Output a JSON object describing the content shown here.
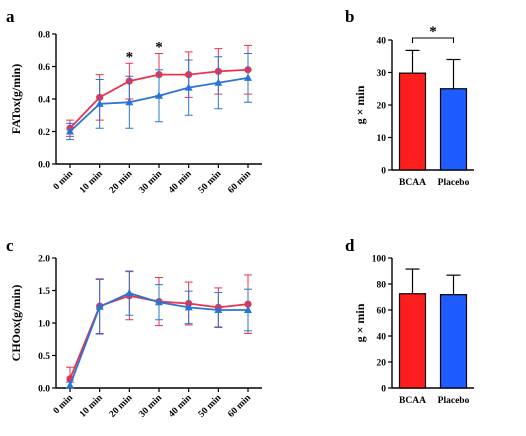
{
  "chart_data": [
    {
      "panel": "a",
      "type": "line",
      "xlabel": "",
      "ylabel": "FATox(g/min)",
      "categories": [
        "0 min",
        "10 min",
        "20 min",
        "30 min",
        "40 min",
        "50 min",
        "60 min"
      ],
      "ylim": [
        0.0,
        0.8
      ],
      "yticks": [
        "0.0",
        "0.2",
        "0.4",
        "0.6",
        "0.8"
      ],
      "series": [
        {
          "values": [
            0.22,
            0.41,
            0.51,
            0.55,
            0.55,
            0.57,
            0.58
          ],
          "error": [
            0.05,
            0.14,
            0.11,
            0.13,
            0.14,
            0.14,
            0.15
          ],
          "color": "#e8334f",
          "marker": "circle"
        },
        {
          "values": [
            0.2,
            0.37,
            0.38,
            0.42,
            0.47,
            0.5,
            0.53
          ],
          "error": [
            0.05,
            0.15,
            0.16,
            0.16,
            0.17,
            0.16,
            0.15
          ],
          "color": "#2a74d6",
          "marker": "triangle"
        }
      ],
      "annotations": [
        {
          "text": "*",
          "category": "20 min"
        },
        {
          "text": "*",
          "category": "30 min"
        }
      ]
    },
    {
      "panel": "b",
      "type": "bar",
      "xlabel": "",
      "ylabel": "g × min",
      "categories": [
        "BCAA",
        "Placebo"
      ],
      "values": [
        29.8,
        25.0
      ],
      "error": [
        7.0,
        9.0
      ],
      "colors": [
        "#ff1e1e",
        "#1e5cff"
      ],
      "ylim": [
        0,
        40
      ],
      "yticks": [
        "0",
        "10",
        "20",
        "30",
        "40"
      ],
      "annotations": [
        {
          "text": "*",
          "between": [
            "BCAA",
            "Placebo"
          ]
        }
      ]
    },
    {
      "panel": "c",
      "type": "line",
      "xlabel": "",
      "ylabel": "CHOox(g/min)",
      "categories": [
        "0 min",
        "10 min",
        "20 min",
        "30 min",
        "40 min",
        "50 min",
        "60 min"
      ],
      "ylim": [
        0.0,
        2.0
      ],
      "yticks": [
        "0.0",
        "0.5",
        "1.0",
        "1.5",
        "2.0"
      ],
      "series": [
        {
          "values": [
            0.14,
            1.26,
            1.42,
            1.33,
            1.3,
            1.24,
            1.29
          ],
          "error": [
            0.18,
            0.42,
            0.37,
            0.37,
            0.33,
            0.3,
            0.45
          ],
          "color": "#e8334f",
          "marker": "circle"
        },
        {
          "values": [
            0.04,
            1.25,
            1.46,
            1.32,
            1.24,
            1.2,
            1.2
          ],
          "error": [
            0.05,
            0.42,
            0.34,
            0.27,
            0.25,
            0.27,
            0.32
          ],
          "color": "#2a74d6",
          "marker": "triangle"
        }
      ]
    },
    {
      "panel": "d",
      "type": "bar",
      "xlabel": "",
      "ylabel": "g × min",
      "categories": [
        "BCAA",
        "Placebo"
      ],
      "values": [
        72.5,
        71.8
      ],
      "error": [
        19.0,
        15.0
      ],
      "colors": [
        "#ff1e1e",
        "#1e5cff"
      ],
      "ylim": [
        0,
        100
      ],
      "yticks": [
        "0",
        "20",
        "40",
        "60",
        "80",
        "100"
      ]
    }
  ]
}
